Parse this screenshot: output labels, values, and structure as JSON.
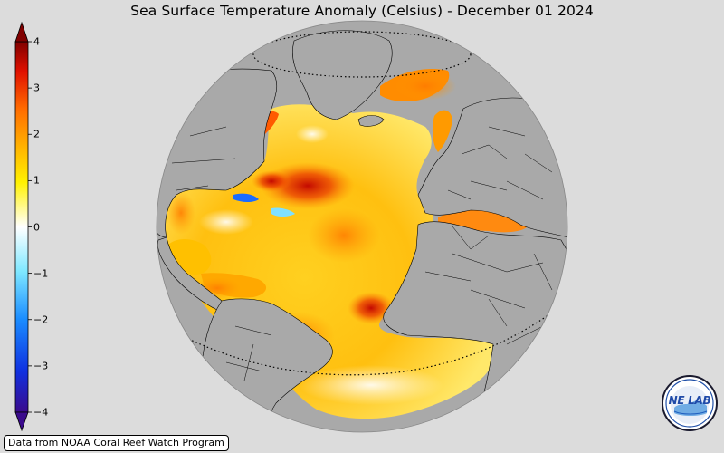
{
  "title": "Sea Surface Temperature Anomaly (Celsius) - December 01 2024",
  "colorbar": {
    "ticks": [
      {
        "value": 4,
        "label": "4"
      },
      {
        "value": 3,
        "label": "3"
      },
      {
        "value": 2,
        "label": "2"
      },
      {
        "value": 1,
        "label": "1"
      },
      {
        "value": 0,
        "label": "0"
      },
      {
        "value": -1,
        "label": "−1"
      },
      {
        "value": -2,
        "label": "−2"
      },
      {
        "value": -3,
        "label": "−3"
      },
      {
        "value": -4,
        "label": "−4"
      }
    ],
    "range": [
      -4,
      4
    ],
    "colors": [
      "#3a0a8c",
      "#1030e0",
      "#1a8cff",
      "#7fe8ff",
      "#ffffff",
      "#fff200",
      "#ffb000",
      "#ff6a00",
      "#e01000",
      "#800000"
    ]
  },
  "map": {
    "land_color": "#a9a9a9",
    "projection": "orthographic globe",
    "features": [
      "graticule-dotted-lines",
      "country-borders",
      "coastlines"
    ]
  },
  "credit": "Data from NOAA Coral Reef Watch Program",
  "logo": {
    "text": "NE LAB"
  }
}
